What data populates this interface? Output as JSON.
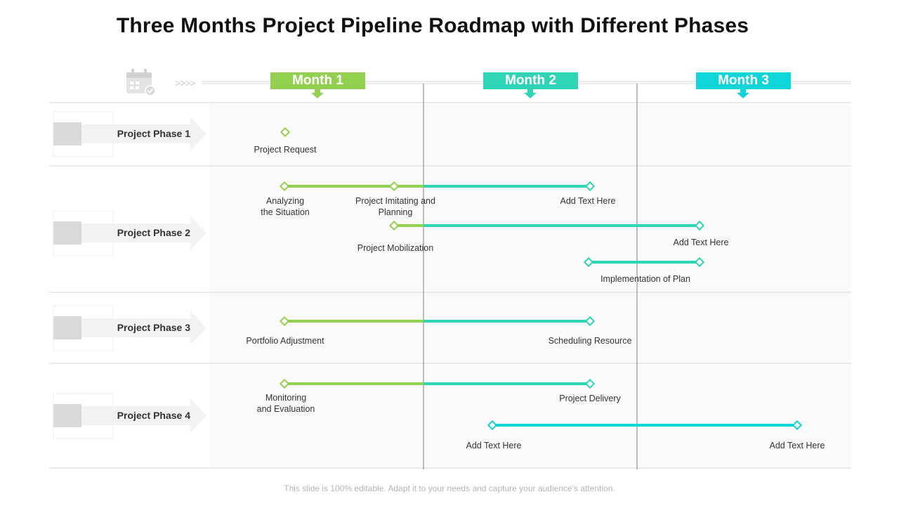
{
  "title": "Three Months Project Pipeline Roadmap with Different Phases",
  "footer": "This slide is 100% editable. Adapt it to your needs and capture your audience’s attention.",
  "header": {
    "arrows_glyph": ">>>>",
    "calendar_icon": "calendar-check-icon"
  },
  "months": [
    {
      "label": "Month 1",
      "color": "#92d050"
    },
    {
      "label": "Month 2",
      "color": "#2fd3b5"
    },
    {
      "label": "Month 3",
      "color": "#0fd4d8"
    }
  ],
  "phases": [
    {
      "label": "Project Phase 1"
    },
    {
      "label": "Project Phase 2"
    },
    {
      "label": "Project Phase 3"
    },
    {
      "label": "Project Phase 4"
    }
  ],
  "milestones": {
    "project_request": "Project Request",
    "analyzing_situation": "Analyzing\nthe Situation",
    "project_imitating": "Project Imitating and\nPlanning",
    "add_text_1": "Add Text Here",
    "project_mobilization": "Project Mobilization",
    "add_text_2": "Add Text Here",
    "implementation_plan": "Implementation  of Plan",
    "portfolio_adjustment": "Portfolio Adjustment",
    "scheduling_resource": "Scheduling Resource",
    "monitoring_evaluation": "Monitoring\nand Evaluation",
    "project_delivery": "Project Delivery",
    "add_text_3": "Add Text Here",
    "add_text_4": "Add Text Here"
  },
  "colors": {
    "green": "#92d050",
    "teal": "#2fd3b5",
    "cyan": "#0fd4d8",
    "grid": "#d9d9d9",
    "divider": "#7f7f7f"
  }
}
